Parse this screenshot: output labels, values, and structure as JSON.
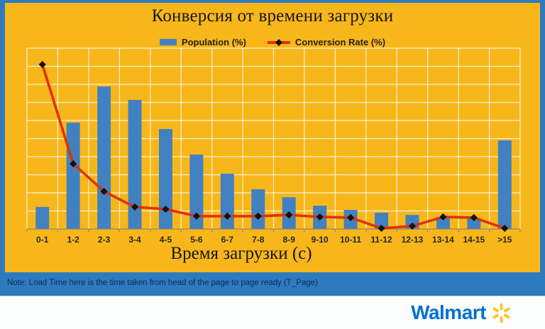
{
  "slide": {
    "title": "Конверсия от времени загрузки",
    "x_axis_title": "Время загрузки (с)",
    "note": "Note: Load Time here is the time taken from head of the page to page ready (T_Page)",
    "brand": "Walmart"
  },
  "legend": {
    "population_label": "Population (%)",
    "conversion_label": "Conversion Rate (%)"
  },
  "colors": {
    "background_yellow": "#F7B71A",
    "frame_blue": "#2E7ABF",
    "bar_blue": "#4181C2",
    "line_red": "#DF3207",
    "marker_black": "#111111",
    "grid_white": "rgba(255,255,255,0.8)",
    "axis_gray": "#8E8672",
    "walmart_blue": "#0071CE",
    "spark_yellow": "#FFC220",
    "note_text": "#0D2B52"
  },
  "chart_data": {
    "type": "bar",
    "combo": "bar + line",
    "title": "Конверсия от времени загрузки",
    "xlabel": "Время загрузки (с)",
    "ylabel": "",
    "ylim": [
      0,
      100
    ],
    "y_axis_tick_labels_visible": false,
    "grid": "white gridlines, 10 rows x 16 columns, on gold background",
    "legend_position": "top-center",
    "categories": [
      "0-1",
      "1-2",
      "2-3",
      "3-4",
      "4-5",
      "5-6",
      "6-7",
      "7-8",
      "8-9",
      "9-10",
      "10-11",
      "11-12",
      "12-13",
      "13-14",
      "14-15",
      ">15"
    ],
    "series": [
      {
        "name": "Population (%)",
        "type": "bar",
        "color": "#4181C2",
        "values": [
          12.2,
          58.8,
          78.8,
          71.4,
          55.3,
          41.2,
          30.6,
          22.0,
          17.6,
          12.9,
          10.6,
          9.0,
          7.8,
          6.7,
          5.9,
          49.0
        ]
      },
      {
        "name": "Conversion Rate (%)",
        "type": "line",
        "color": "#DF3207",
        "marker": "black-diamond",
        "values": [
          91.0,
          36.1,
          20.8,
          12.2,
          11.0,
          7.1,
          7.1,
          7.1,
          7.8,
          6.7,
          6.3,
          0.4,
          1.6,
          6.7,
          6.3,
          0.4
        ]
      }
    ]
  }
}
